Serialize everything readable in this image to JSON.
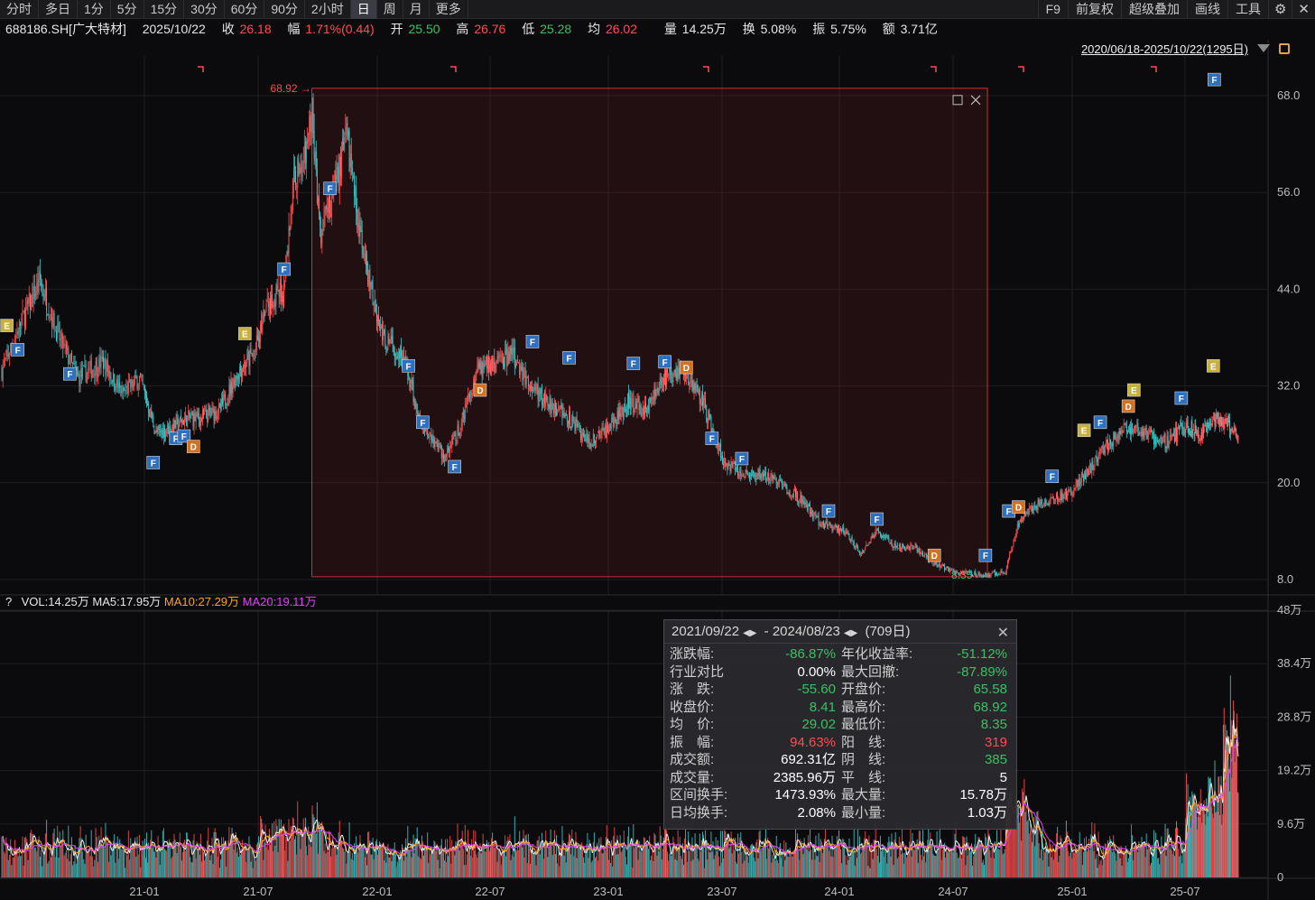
{
  "tabs": [
    {
      "label": "分时",
      "active": false
    },
    {
      "label": "多日",
      "active": false
    },
    {
      "label": "1分",
      "active": false
    },
    {
      "label": "5分",
      "active": false
    },
    {
      "label": "15分",
      "active": false
    },
    {
      "label": "30分",
      "active": false
    },
    {
      "label": "60分",
      "active": false
    },
    {
      "label": "90分",
      "active": false
    },
    {
      "label": "2小时",
      "active": false
    },
    {
      "label": "日",
      "active": true
    },
    {
      "label": "周",
      "active": false
    },
    {
      "label": "月",
      "active": false
    },
    {
      "label": "更多",
      "active": false
    }
  ],
  "tools": {
    "f9": "F9",
    "adjust": "前复权",
    "overlay": "超级叠加",
    "draw": "画线",
    "tool": "工具",
    "settings_icon": "gear-icon",
    "close_icon": "close-icon",
    "settings_glyph": "⚙",
    "close_glyph": "✕"
  },
  "quote": {
    "code": "688186.SH[广大特材]",
    "date": "2025/10/22",
    "close_label": "收",
    "close": "26.18",
    "change_label": "幅",
    "change": "1.71%(0.44)",
    "open_label": "开",
    "open": "25.50",
    "high_label": "高",
    "high": "26.76",
    "low_label": "低",
    "low": "25.28",
    "avg_label": "均",
    "avg": "26.02",
    "volume_label": "量",
    "volume": "14.25万",
    "turnover_label": "换",
    "turnover": "5.08%",
    "amplitude_label": "振",
    "amplitude": "5.75%",
    "amount_label": "额",
    "amount": "3.71亿"
  },
  "range": {
    "text": "2020/06/18-2025/10/22(1295日)"
  },
  "colors": {
    "up": "#ff4d4f",
    "down": "#3fc8c8",
    "ma5": "#f0f0f0",
    "ma10": "#f5a623",
    "ma20": "#e040fb",
    "selection": "#c83232",
    "marker_f": "#2f6fbf",
    "marker_e": "#c8b040",
    "marker_d": "#d47020"
  },
  "price_axis": {
    "ticks": [
      "68.0",
      "56.0",
      "44.0",
      "32.0",
      "20.0",
      "8.0"
    ],
    "tick_values": [
      68,
      56,
      44,
      32,
      20,
      8
    ]
  },
  "volume_axis": {
    "ticks": [
      "48万",
      "38.4万",
      "28.8万",
      "19.2万",
      "9.6万",
      "0"
    ],
    "tick_values": [
      48,
      38.4,
      28.8,
      19.2,
      9.6,
      0
    ]
  },
  "date_axis": [
    "21-01",
    "21-07",
    "22-01",
    "22-07",
    "23-01",
    "23-07",
    "24-01",
    "24-07",
    "25-01",
    "25-07"
  ],
  "selection": {
    "high_label": "68.92",
    "low_label": "8.35",
    "high": 68.92,
    "low": 8.35
  },
  "vol_legend": {
    "help": "?",
    "vol": "VOL:14.25万",
    "ma5": "MA5:17.95万",
    "ma10": "MA10:27.29万",
    "ma20": "MA20:19.11万"
  },
  "stats": {
    "start": "2021/09/22",
    "end": "2024/08/23",
    "days": "(709日)",
    "rows_left": [
      {
        "k": "涨跌幅:",
        "v": "-86.87%",
        "c": "green"
      },
      {
        "k": "行业对比",
        "v": "0.00%",
        "c": "white"
      },
      {
        "k": "涨　跌:",
        "v": "-55.60",
        "c": "green"
      },
      {
        "k": "收盘价:",
        "v": "8.41",
        "c": "green"
      },
      {
        "k": "均　价:",
        "v": "29.02",
        "c": "green"
      },
      {
        "k": "振　幅:",
        "v": "94.63%",
        "c": "red"
      },
      {
        "k": "成交额:",
        "v": "692.31亿",
        "c": "white"
      },
      {
        "k": "成交量:",
        "v": "2385.96万",
        "c": "white"
      },
      {
        "k": "区间换手:",
        "v": "1473.93%",
        "c": "white"
      },
      {
        "k": "日均换手:",
        "v": "2.08%",
        "c": "white"
      }
    ],
    "rows_right": [
      {
        "k": "年化收益率:",
        "v": "-51.12%",
        "c": "green"
      },
      {
        "k": "最大回撤:",
        "v": "-87.89%",
        "c": "green"
      },
      {
        "k": "开盘价:",
        "v": "65.58",
        "c": "green"
      },
      {
        "k": "最高价:",
        "v": "68.92",
        "c": "green"
      },
      {
        "k": "最低价:",
        "v": "8.35",
        "c": "green"
      },
      {
        "k": "阳　线:",
        "v": "319",
        "c": "red"
      },
      {
        "k": "阴　线:",
        "v": "385",
        "c": "green"
      },
      {
        "k": "平　线:",
        "v": "5",
        "c": "white"
      },
      {
        "k": "最大量:",
        "v": "15.78万",
        "c": "white"
      },
      {
        "k": "最小量:",
        "v": "1.03万",
        "c": "white"
      }
    ]
  },
  "price_path": [
    [
      "2020-06-18",
      34
    ],
    [
      "2020-07-15",
      40
    ],
    [
      "2020-08-10",
      45
    ],
    [
      "2020-09-05",
      38
    ],
    [
      "2020-10-01",
      33
    ],
    [
      "2020-11-05",
      35
    ],
    [
      "2020-12-01",
      31
    ],
    [
      "2020-12-25",
      33
    ],
    [
      "2021-01-20",
      26
    ],
    [
      "2021-02-15",
      27
    ],
    [
      "2021-03-10",
      28
    ],
    [
      "2021-04-01",
      28
    ],
    [
      "2021-05-01",
      29
    ],
    [
      "2021-06-01",
      34
    ],
    [
      "2021-06-25",
      36
    ],
    [
      "2021-07-15",
      42
    ],
    [
      "2021-08-10",
      44
    ],
    [
      "2021-08-25",
      58
    ],
    [
      "2021-09-10",
      60
    ],
    [
      "2021-09-22",
      66
    ],
    [
      "2021-10-05",
      50
    ],
    [
      "2021-10-25",
      56
    ],
    [
      "2021-11-15",
      63
    ],
    [
      "2021-12-10",
      48
    ],
    [
      "2022-01-10",
      38
    ],
    [
      "2022-02-10",
      36
    ],
    [
      "2022-03-10",
      28
    ],
    [
      "2022-04-20",
      23
    ],
    [
      "2022-05-15",
      27
    ],
    [
      "2022-06-10",
      34
    ],
    [
      "2022-07-10",
      35
    ],
    [
      "2022-08-05",
      36
    ],
    [
      "2022-09-01",
      32
    ],
    [
      "2022-10-01",
      30
    ],
    [
      "2022-11-01",
      28
    ],
    [
      "2022-12-01",
      25
    ],
    [
      "2023-01-05",
      27
    ],
    [
      "2023-02-01",
      30
    ],
    [
      "2023-03-01",
      29
    ],
    [
      "2023-04-01",
      33
    ],
    [
      "2023-05-01",
      34
    ],
    [
      "2023-06-01",
      30
    ],
    [
      "2023-07-01",
      23
    ],
    [
      "2023-08-01",
      21
    ],
    [
      "2023-09-01",
      21
    ],
    [
      "2023-10-01",
      20
    ],
    [
      "2023-11-01",
      18
    ],
    [
      "2023-12-01",
      15
    ],
    [
      "2024-01-10",
      14
    ],
    [
      "2024-02-05",
      11
    ],
    [
      "2024-03-01",
      14
    ],
    [
      "2024-04-01",
      12
    ],
    [
      "2024-05-01",
      12
    ],
    [
      "2024-06-01",
      10
    ],
    [
      "2024-07-01",
      9
    ],
    [
      "2024-08-23",
      8.5
    ],
    [
      "2024-09-20",
      9
    ],
    [
      "2024-10-10",
      15
    ],
    [
      "2024-11-01",
      17
    ],
    [
      "2024-12-01",
      18
    ],
    [
      "2025-01-01",
      19
    ],
    [
      "2025-02-01",
      22
    ],
    [
      "2025-03-01",
      25
    ],
    [
      "2025-04-01",
      27
    ],
    [
      "2025-05-01",
      26
    ],
    [
      "2025-06-01",
      25
    ],
    [
      "2025-07-01",
      27
    ],
    [
      "2025-08-01",
      26
    ],
    [
      "2025-09-01",
      28
    ],
    [
      "2025-10-01",
      27
    ],
    [
      "2025-10-22",
      26.18
    ]
  ],
  "markers": [
    {
      "t": "E",
      "d": "2020-06-25",
      "p": 39.5
    },
    {
      "t": "F",
      "d": "2020-07-10",
      "p": 36.5
    },
    {
      "t": "F",
      "d": "2020-09-20",
      "p": 33.5
    },
    {
      "t": "F",
      "d": "2021-01-15",
      "p": 22.5
    },
    {
      "t": "F",
      "d": "2021-02-20",
      "p": 25.5
    },
    {
      "t": "F",
      "d": "2021-03-05",
      "p": 25.8
    },
    {
      "t": "D",
      "d": "2021-03-20",
      "p": 24.5
    },
    {
      "t": "E",
      "d": "2021-06-10",
      "p": 38.5
    },
    {
      "t": "F",
      "d": "2021-08-10",
      "p": 46.5
    },
    {
      "t": "F",
      "d": "2021-10-20",
      "p": 56.5
    },
    {
      "t": "F",
      "d": "2022-02-20",
      "p": 34.5
    },
    {
      "t": "F",
      "d": "2022-03-15",
      "p": 27.5
    },
    {
      "t": "F",
      "d": "2022-05-05",
      "p": 22
    },
    {
      "t": "D",
      "d": "2022-06-15",
      "p": 31.5
    },
    {
      "t": "F",
      "d": "2022-09-05",
      "p": 37.5
    },
    {
      "t": "F",
      "d": "2022-11-01",
      "p": 35.5
    },
    {
      "t": "F",
      "d": "2023-02-10",
      "p": 34.8
    },
    {
      "t": "F",
      "d": "2023-04-01",
      "p": 35
    },
    {
      "t": "D",
      "d": "2023-05-05",
      "p": 34.3
    },
    {
      "t": "F",
      "d": "2023-06-15",
      "p": 25.5
    },
    {
      "t": "F",
      "d": "2023-08-01",
      "p": 23
    },
    {
      "t": "F",
      "d": "2023-12-15",
      "p": 16.5
    },
    {
      "t": "F",
      "d": "2024-03-01",
      "p": 15.5
    },
    {
      "t": "D",
      "d": "2024-06-01",
      "p": 11
    },
    {
      "t": "F",
      "d": "2024-08-20",
      "p": 11
    },
    {
      "t": "F",
      "d": "2024-09-25",
      "p": 16.5
    },
    {
      "t": "D",
      "d": "2024-10-10",
      "p": 17
    },
    {
      "t": "F",
      "d": "2024-12-01",
      "p": 20.8
    },
    {
      "t": "E",
      "d": "2025-01-20",
      "p": 26.5
    },
    {
      "t": "F",
      "d": "2025-02-15",
      "p": 27.5
    },
    {
      "t": "D",
      "d": "2025-04-01",
      "p": 29.5
    },
    {
      "t": "E",
      "d": "2025-04-10",
      "p": 31.5
    },
    {
      "t": "F",
      "d": "2025-06-25",
      "p": 30.5
    },
    {
      "t": "E",
      "d": "2025-08-30",
      "p": 34.5
    },
    {
      "t": "F",
      "d": "2025-09-01",
      "p": 70
    }
  ]
}
